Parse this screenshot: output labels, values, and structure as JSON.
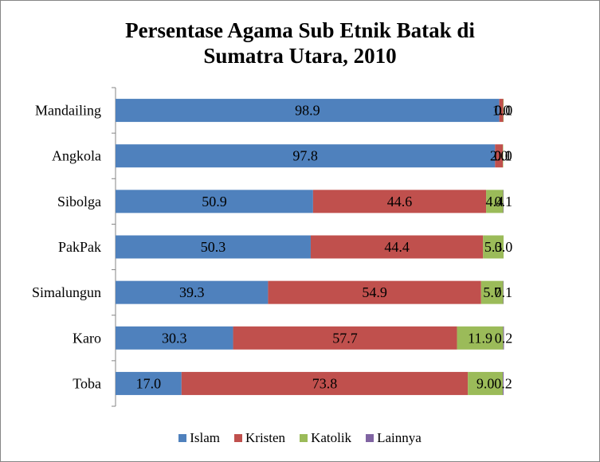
{
  "chart_data": {
    "type": "bar",
    "orientation": "horizontal",
    "stacked": true,
    "title": "Persentase Agama Sub Etnik Batak di Sumatra Utara, 2010",
    "title_lines": [
      "Persentase Agama Sub Etnik Batak di",
      "Sumatra Utara, 2010"
    ],
    "xlabel": "",
    "ylabel": "",
    "xlim": [
      0,
      100
    ],
    "grid": false,
    "legend_position": "bottom",
    "categories": [
      "Mandailing",
      "Angkola",
      "Sibolga",
      "PakPak",
      "Simalungun",
      "Karo",
      "Toba"
    ],
    "series": [
      {
        "name": "Islam",
        "color": "#4F81BD",
        "values": [
          98.9,
          97.8,
          50.9,
          50.3,
          39.3,
          30.3,
          17.0
        ],
        "labels": [
          "98.9",
          "97.8",
          "50.9",
          "50.3",
          "39.3",
          "30.3",
          "17.0"
        ]
      },
      {
        "name": "Kristen",
        "color": "#C0504D",
        "values": [
          1.0,
          2.0,
          44.6,
          44.4,
          54.9,
          57.7,
          73.8
        ],
        "labels": [
          "1.0",
          "2.0",
          "44.6",
          "44.4",
          "54.9",
          "57.7",
          "73.8"
        ]
      },
      {
        "name": "Katolik",
        "color": "#9BBB59",
        "values": [
          0.1,
          0.1,
          4.4,
          5.3,
          5.7,
          11.9,
          9.0
        ],
        "labels": [
          "0.1",
          "0.1",
          "4.4",
          "5.3",
          "5.7",
          "11.9",
          "9.0"
        ]
      },
      {
        "name": "Lainnya",
        "color": "#8064A2",
        "values": [
          0.0,
          0.0,
          0.1,
          0.0,
          0.1,
          0.2,
          0.2
        ],
        "labels": [
          "0.0",
          "0.0",
          "0.1",
          "0.0",
          "0.1",
          "0.2",
          "0.2"
        ]
      }
    ]
  }
}
